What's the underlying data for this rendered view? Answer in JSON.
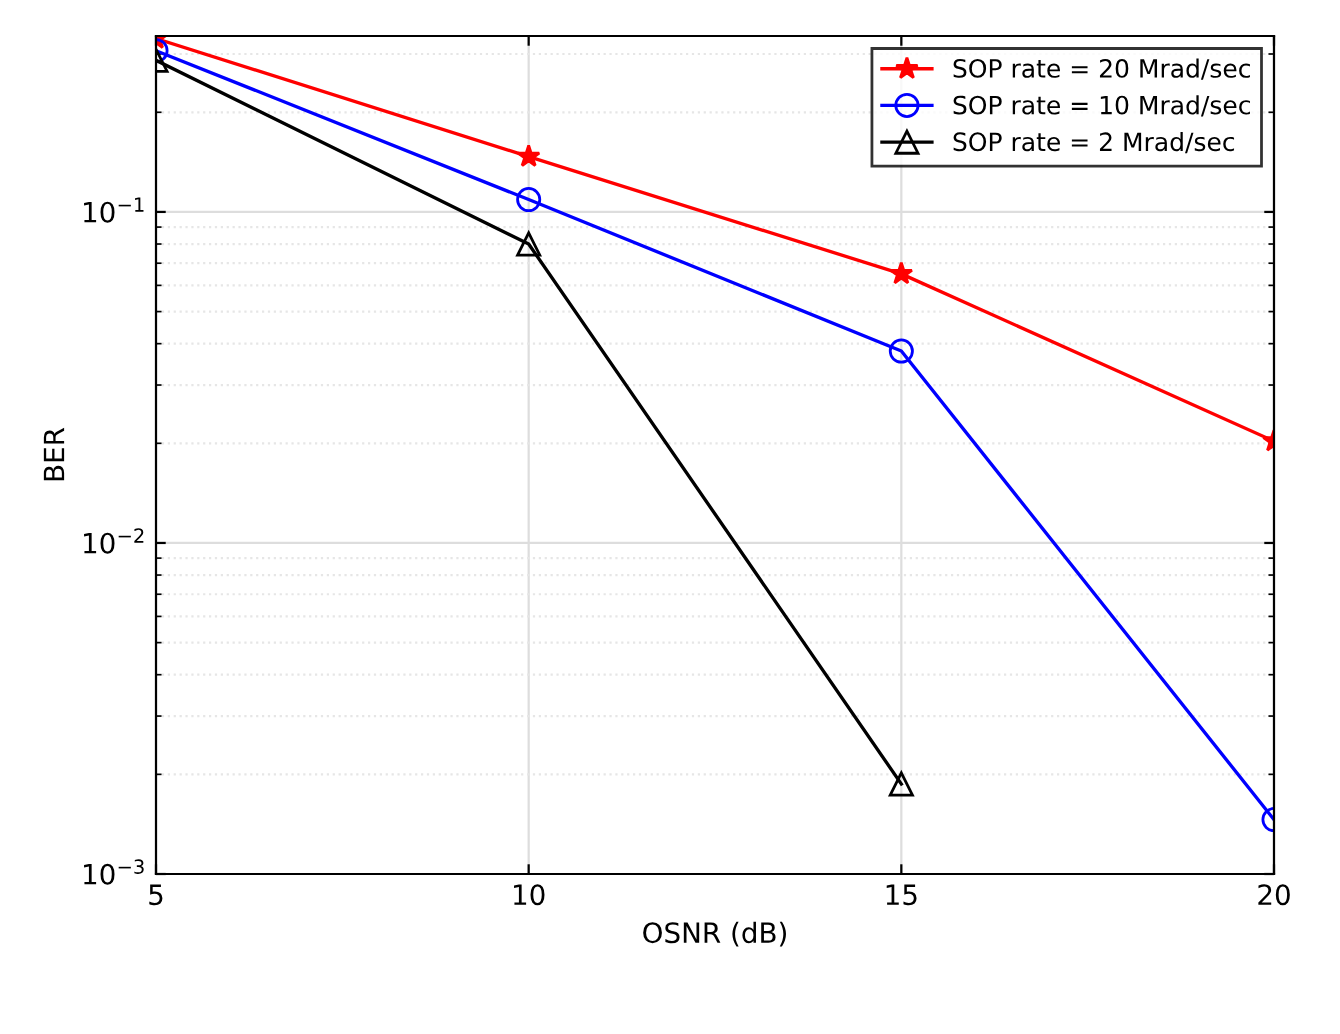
{
  "chart_data": {
    "type": "line",
    "xlabel": "OSNR (dB)",
    "ylabel": "BER",
    "x": [
      5,
      10,
      15,
      20
    ],
    "series": [
      {
        "name": "SOP rate = 20 Mrad/sec",
        "color": "#ff0000",
        "marker": "star",
        "values": [
          0.334,
          0.147,
          0.065,
          0.0203
        ]
      },
      {
        "name": "SOP rate = 10 Mrad/sec",
        "color": "#0000ff",
        "marker": "circle",
        "values": [
          0.307,
          0.109,
          0.038,
          0.00146
        ]
      },
      {
        "name": "SOP rate = 2 Mrad/sec",
        "color": "#000000",
        "marker": "triangle",
        "values": [
          0.287,
          0.08,
          0.00187,
          null
        ]
      }
    ],
    "log": "y",
    "xlim": [
      5,
      20
    ],
    "xticks": [
      5,
      10,
      15,
      20
    ],
    "ylim": [
      0.001,
      0.34
    ],
    "yticks": [
      {
        "value": 0.001,
        "label": "10$^{−3}$"
      },
      {
        "value": 0.01,
        "label": "10$^{−2}$"
      },
      {
        "value": 0.1,
        "label": "10$^{−1}$"
      }
    ],
    "grid": true,
    "legend": "top right",
    "line_style": "solid"
  }
}
